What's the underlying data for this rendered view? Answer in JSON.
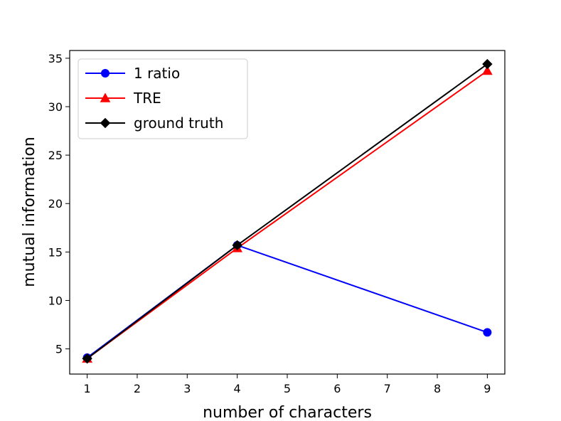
{
  "chart_data": {
    "type": "line",
    "title": "",
    "xlabel": "number of characters",
    "ylabel": "mutual information",
    "xlim": [
      0.65,
      9.35
    ],
    "ylim": [
      2.4,
      35.8
    ],
    "xticks": [
      1,
      2,
      3,
      4,
      5,
      6,
      7,
      8,
      9
    ],
    "yticks": [
      5,
      10,
      15,
      20,
      25,
      30,
      35
    ],
    "grid": false,
    "legend_position": "top-left",
    "series": [
      {
        "name": "1 ratio",
        "color": "#0000ff",
        "marker": "circle",
        "x": [
          1,
          4,
          9
        ],
        "y": [
          4.1,
          15.7,
          6.7
        ]
      },
      {
        "name": "TRE",
        "color": "#ff0000",
        "marker": "triangle",
        "x": [
          1,
          4,
          9
        ],
        "y": [
          4.0,
          15.4,
          33.7
        ]
      },
      {
        "name": "ground truth",
        "color": "#000000",
        "marker": "diamond",
        "x": [
          1,
          4,
          9
        ],
        "y": [
          4.0,
          15.7,
          34.4
        ]
      }
    ]
  }
}
